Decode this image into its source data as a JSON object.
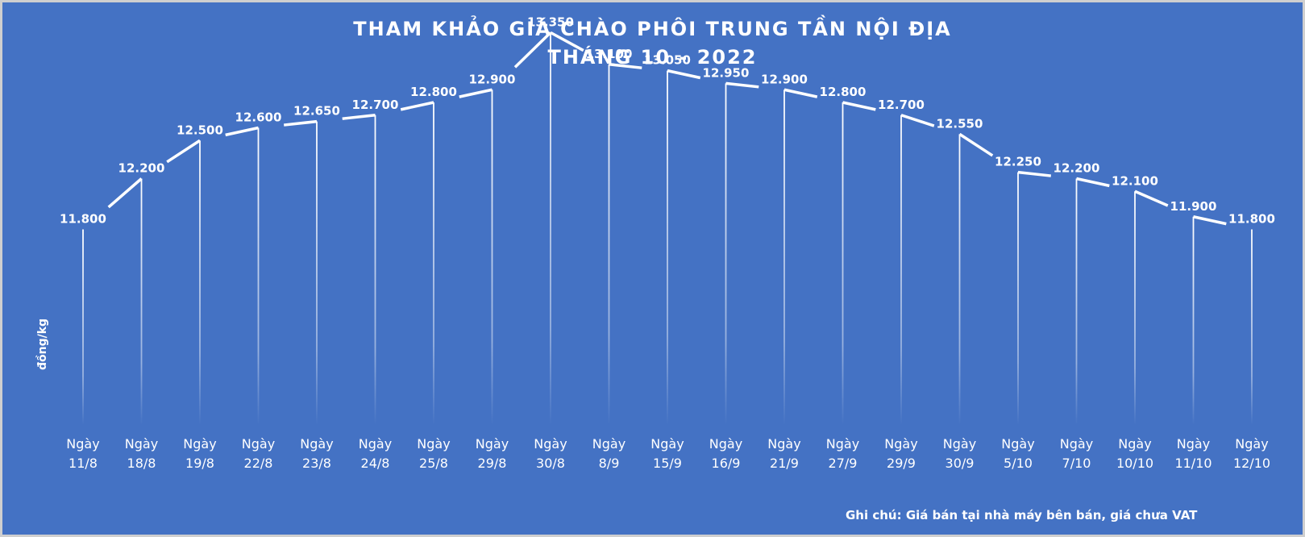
{
  "chart_data": {
    "type": "line",
    "title": "THAM KHẢO GIÁ CHÀO PHÔI TRUNG TẦN NỘI ĐỊA",
    "subtitle": "THÁNG 10 - 2022",
    "ylabel": "đồng/kg",
    "xlabel": "",
    "ylim": [
      10000,
      14000
    ],
    "grid": false,
    "legend": "none",
    "categories": [
      [
        "Ngày",
        "11/8"
      ],
      [
        "Ngày",
        "18/8"
      ],
      [
        "Ngày",
        "19/8"
      ],
      [
        "Ngày",
        "22/8"
      ],
      [
        "Ngày",
        "23/8"
      ],
      [
        "Ngày",
        "24/8"
      ],
      [
        "Ngày",
        "25/8"
      ],
      [
        "Ngày",
        "29/8"
      ],
      [
        "Ngày",
        "30/8"
      ],
      [
        "Ngày",
        "8/9"
      ],
      [
        "Ngày",
        "15/9"
      ],
      [
        "Ngày",
        "16/9"
      ],
      [
        "Ngày",
        "21/9"
      ],
      [
        "Ngày",
        "27/9"
      ],
      [
        "Ngày",
        "29/9"
      ],
      [
        "Ngày",
        "30/9"
      ],
      [
        "Ngày",
        "5/10"
      ],
      [
        "Ngày",
        "7/10"
      ],
      [
        "Ngày",
        "10/10"
      ],
      [
        "Ngày",
        "11/10"
      ],
      [
        "Ngày",
        "12/10"
      ]
    ],
    "values": [
      11800,
      12200,
      12500,
      12600,
      12650,
      12700,
      12800,
      12900,
      13350,
      13100,
      13050,
      12950,
      12900,
      12800,
      12700,
      12550,
      12250,
      12200,
      12100,
      11900,
      11800
    ],
    "data_labels": [
      "11.800",
      "12.200",
      "12.500",
      "12.600",
      "12.650",
      "12.700",
      "12.800",
      "12.900",
      "13.350",
      "13.100",
      "13.050",
      "12.950",
      "12.900",
      "12.800",
      "12.700",
      "12.550",
      "12.250",
      "12.200",
      "12.100",
      "11.900",
      "11.800"
    ],
    "note": "Ghi chú: Giá bán tại nhà máy bên bán, giá chưa VAT",
    "colors": {
      "background": "#4472c4",
      "line": "#ffffff",
      "drop_lines": "#ffffff",
      "text": "#ffffff"
    }
  }
}
